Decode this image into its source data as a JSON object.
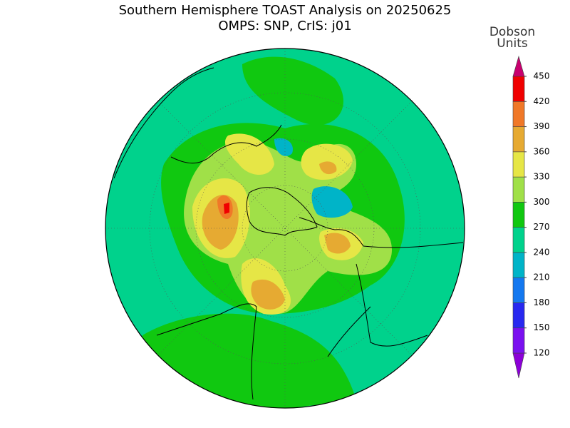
{
  "header": {
    "title": [
      "Southern Hemisphere TOAST Analysis on 20250625",
      "OMPS: SNP, CrIS: j01"
    ]
  },
  "colorbar": {
    "label": [
      "Dobson",
      "Units"
    ],
    "levels": [
      120,
      150,
      180,
      210,
      240,
      270,
      300,
      330,
      360,
      390,
      420,
      450
    ],
    "colors": [
      "#8c00d8",
      "#7a10f0",
      "#2828f0",
      "#1478f0",
      "#00b4c8",
      "#00d28c",
      "#10c810",
      "#a0e048",
      "#e6e646",
      "#e6aa32",
      "#f07828",
      "#f00000",
      "#c8006e"
    ]
  }
}
